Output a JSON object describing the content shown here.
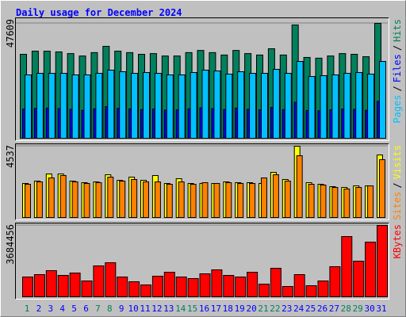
{
  "chart_data": [
    {
      "type": "bar",
      "title": "Daily usage for December 2024",
      "ylim": [
        0,
        47609
      ],
      "yticks": [
        47609
      ],
      "grid": true,
      "legend_separator": "/",
      "series": [
        {
          "name": "Hits",
          "color": "#00805c",
          "values": [
            34800,
            36100,
            36100,
            35800,
            35100,
            34100,
            35500,
            38100,
            36100,
            35500,
            34800,
            35100,
            34100,
            34100,
            35500,
            36400,
            35500,
            34500,
            36400,
            35100,
            34500,
            37100,
            34500,
            46950,
            33500,
            33200,
            34100,
            35100,
            34800,
            33800,
            47609
          ]
        },
        {
          "name": "Files",
          "color": "#0000ff",
          "values": [
            12100,
            12400,
            12500,
            12300,
            12000,
            11600,
            12200,
            13100,
            12400,
            12200,
            11900,
            12100,
            11700,
            11800,
            12200,
            12600,
            12300,
            11900,
            12500,
            12000,
            11800,
            12800,
            11900,
            14900,
            11500,
            11400,
            11800,
            12100,
            12000,
            11600,
            15300
          ]
        },
        {
          "name": "Pages",
          "color": "#00c0ff",
          "values": [
            26270,
            26920,
            26920,
            26920,
            26270,
            26270,
            26920,
            28240,
            27580,
            26920,
            27250,
            26920,
            26270,
            26270,
            27250,
            28240,
            27910,
            26600,
            27580,
            26920,
            26920,
            28570,
            26920,
            31850,
            25610,
            25940,
            26270,
            26920,
            27250,
            26600,
            31850
          ]
        }
      ]
    },
    {
      "type": "bar",
      "ylim": [
        0,
        4537
      ],
      "yticks": [
        4537
      ],
      "grid": true,
      "legend_separator": "/",
      "series": [
        {
          "name": "Visits",
          "color": "#ffff00",
          "values": [
            2168,
            2319,
            2773,
            2773,
            2319,
            2218,
            2268,
            2722,
            2369,
            2571,
            2369,
            2672,
            2168,
            2470,
            2168,
            2168,
            2168,
            2268,
            2218,
            2218,
            2168,
            2873,
            2420,
            4537,
            2218,
            2117,
            1966,
            1916,
            2016,
            2016,
            3982
          ]
        },
        {
          "name": "Sites",
          "color": "#ff8000",
          "values": [
            2117,
            2268,
            2521,
            2672,
            2268,
            2168,
            2218,
            2571,
            2319,
            2420,
            2268,
            2268,
            2117,
            2268,
            2117,
            2218,
            2168,
            2218,
            2168,
            2168,
            2521,
            2722,
            2319,
            3932,
            2117,
            2067,
            1916,
            1815,
            1916,
            2016,
            3680
          ]
        }
      ]
    },
    {
      "type": "bar",
      "ylim": [
        0,
        3684456
      ],
      "yticks": [
        3684456
      ],
      "grid": true,
      "categories": [
        "1",
        "2",
        "3",
        "4",
        "5",
        "6",
        "7",
        "8",
        "9",
        "10",
        "11",
        "12",
        "13",
        "14",
        "15",
        "16",
        "17",
        "18",
        "19",
        "20",
        "21",
        "22",
        "23",
        "24",
        "25",
        "26",
        "27",
        "28",
        "29",
        "30",
        "31"
      ],
      "category_colors": [
        "#00805c",
        "#0000ff",
        "#0000ff",
        "#0000ff",
        "#0000ff",
        "#0000ff",
        "#00805c",
        "#00805c",
        "#0000ff",
        "#0000ff",
        "#0000ff",
        "#0000ff",
        "#0000ff",
        "#00805c",
        "#00805c",
        "#0000ff",
        "#0000ff",
        "#0000ff",
        "#0000ff",
        "#0000ff",
        "#00805c",
        "#00805c",
        "#0000ff",
        "#0000ff",
        "#0000ff",
        "#0000ff",
        "#0000ff",
        "#00805c",
        "#00805c",
        "#0000ff",
        "#0000ff"
      ],
      "series": [
        {
          "name": "KBytes",
          "color": "#ff0000",
          "values": [
            1023450,
            1146264,
            1350954,
            1105326,
            1228140,
            818760,
            1596582,
            1760334,
            1023450,
            777822,
            614070,
            1064388,
            1269078,
            1023450,
            941574,
            1187202,
            1391892,
            1105326,
            1023450,
            1269078,
            655008,
            1473768,
            532194,
            1146264,
            573132,
            818760,
            1555644,
            3111288,
            1842210,
            2824722,
            3684456
          ]
        }
      ]
    }
  ]
}
